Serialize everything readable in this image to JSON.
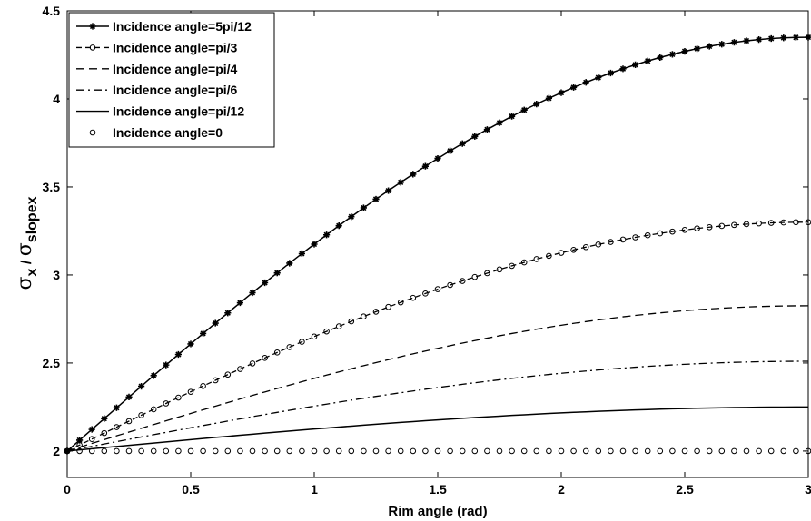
{
  "chart_data": {
    "type": "line",
    "xlabel": "Rim angle (rad)",
    "ylabel": {
      "sigma1": "σ",
      "sub1": "x",
      "sep": " / ",
      "sigma2": "σ",
      "sub2": "slopex"
    },
    "xlim": [
      0,
      3
    ],
    "ylim": [
      1.85,
      4.5
    ],
    "xticks": [
      0,
      0.5,
      1,
      1.5,
      2,
      2.5,
      3
    ],
    "xtick_labels": [
      "0",
      "0.5",
      "1",
      "1.5",
      "2",
      "2.5",
      "3"
    ],
    "yticks": [
      2,
      2.5,
      3,
      3.5,
      4,
      4.5
    ],
    "ytick_labels": [
      "2",
      "2.5",
      "3",
      "3.5",
      "4",
      "4.5"
    ],
    "grid": false,
    "legend_position": "top-left",
    "series": [
      {
        "name": "Incidence angle=5pi/12",
        "style": "solid-star",
        "amplitude": 2.35
      },
      {
        "name": "Incidence angle=pi/3",
        "style": "dash-circle",
        "amplitude": 1.3
      },
      {
        "name": "Incidence angle=pi/4",
        "style": "dashed",
        "amplitude": 0.825
      },
      {
        "name": "Incidence angle=pi/6",
        "style": "dashdot",
        "amplitude": 0.51
      },
      {
        "name": "Incidence angle=pi/12",
        "style": "solid",
        "amplitude": 0.25
      },
      {
        "name": "Incidence angle=0",
        "style": "circles",
        "amplitude": 0
      }
    ],
    "curve_model": "y = 2 + amplitude * sin(pi * x / 6)",
    "x_step": 0.05
  }
}
